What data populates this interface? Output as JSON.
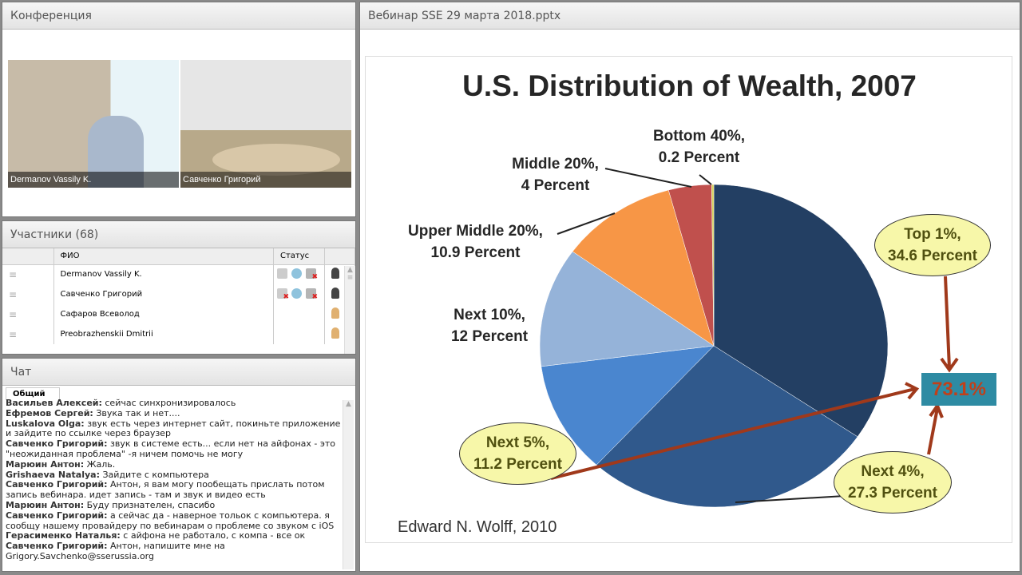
{
  "conference": {
    "title": "Конференция",
    "videos": [
      {
        "name": "Dermanov Vassily K."
      },
      {
        "name": "Савченко Григорий"
      }
    ]
  },
  "participants": {
    "title": "Участники (68)",
    "columns": [
      "ФИО",
      "Статус"
    ],
    "rows": [
      {
        "name": "Dermanov Vassily K.",
        "status": [
          "mic-active-icon",
          "webcam-icon",
          "screen-off-icon"
        ],
        "role": "presenter"
      },
      {
        "name": "Савченко Григорий",
        "status": [
          "mic-off-icon",
          "webcam-icon",
          "screen-off-icon"
        ],
        "role": "presenter"
      },
      {
        "name": "Сафаров Всеволод",
        "status": [],
        "role": "participant"
      },
      {
        "name": "Preobrazhenskii Dmitrii",
        "status": [],
        "role": "participant"
      }
    ]
  },
  "chat": {
    "title": "Чат",
    "tab": "Общий",
    "messages": [
      {
        "author": "Васильев Алексей:",
        "text": " сейчас синхронизировалось"
      },
      {
        "author": "Ефремов  Сергей:",
        "text": "  Звука так и нет...."
      },
      {
        "author": "Luskalova Olga:",
        "text": " звук есть через интернет сайт, покиньте приложение и зайдите по ссылке через браузер"
      },
      {
        "author": "Савченко Григорий:",
        "text": " звук в системе есть... если нет на айфонах - это \"неожиданная проблема\" -я ничем помочь не могу"
      },
      {
        "author": "Марюин Антон:",
        "text": " Жаль."
      },
      {
        "author": "Grishaeva Natalya:",
        "text": " Зайдите с компьютера"
      },
      {
        "author": "Савченко Григорий:",
        "text": " Антон, я вам могу пообещать прислать потом запись вебинара. идет запись - там и звук и видео есть"
      },
      {
        "author": "Марюин Антон:",
        "text": " Буду признателен, спасибо"
      },
      {
        "author": "Савченко Григорий:",
        "text": " а сейчас да - наверное тольок с компьютера. я сообщу нашему провайдеру по вебинарам о проблеме со звуком с iOS"
      },
      {
        "author": "Герасименко Наталья:",
        "text": " с айфона не работало, с компа - все ок"
      },
      {
        "author": "Савченко Григорий:",
        "text": " Антон, напишите мне на Grigory.Savchenko@sserussia.org"
      }
    ]
  },
  "presentation": {
    "title": "Вебинар SSE 29 марта 2018.pptx",
    "source": "Edward N. Wolff, 2010",
    "total_label": "73.1%"
  },
  "chart_data": {
    "type": "pie",
    "title": "U.S. Distribution of Wealth, 2007",
    "slices": [
      {
        "label1": "Top 1%,",
        "label2": "34.6 Percent",
        "value": 34.6,
        "color": "#233f63"
      },
      {
        "label1": "Next 4%,",
        "label2": "27.3 Percent",
        "value": 27.3,
        "color": "#30598c"
      },
      {
        "label1": "Next 5%,",
        "label2": "11.2 Percent",
        "value": 11.2,
        "color": "#4a86cf"
      },
      {
        "label1": "Next 10%,",
        "label2": "12 Percent",
        "value": 12,
        "color": "#95b3d9"
      },
      {
        "label1": "Upper Middle 20%,",
        "label2": "10.9 Percent",
        "value": 10.9,
        "color": "#f79646"
      },
      {
        "label1": "Middle 20%,",
        "label2": "4 Percent",
        "value": 4,
        "color": "#c0504d"
      },
      {
        "label1": "Bottom 40%,",
        "label2": "0.2 Percent",
        "value": 0.2,
        "color": "#d6d25a"
      }
    ]
  }
}
